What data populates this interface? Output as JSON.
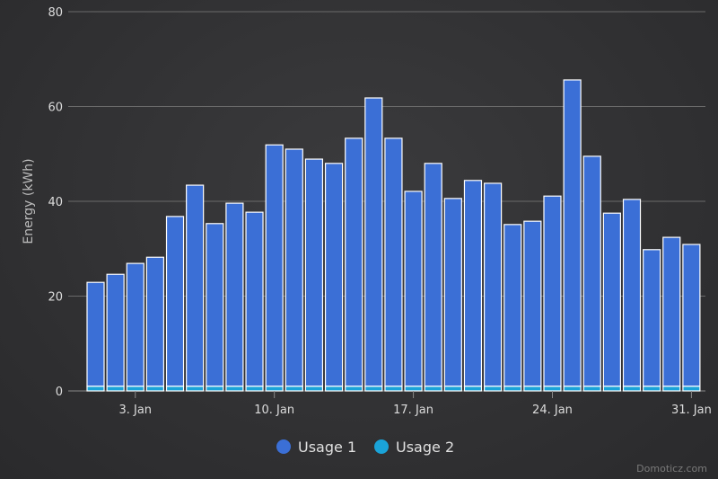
{
  "chart_data": {
    "type": "bar",
    "stacked": true,
    "ylabel": "Energy (kWh)",
    "ylim": [
      0,
      80
    ],
    "yticks": [
      0,
      20,
      40,
      60,
      80
    ],
    "grid": true,
    "x": [
      "1. Jan",
      "2. Jan",
      "3. Jan",
      "4. Jan",
      "5. Jan",
      "6. Jan",
      "7. Jan",
      "8. Jan",
      "9. Jan",
      "10. Jan",
      "11. Jan",
      "12. Jan",
      "13. Jan",
      "14. Jan",
      "15. Jan",
      "16. Jan",
      "17. Jan",
      "18. Jan",
      "19. Jan",
      "20. Jan",
      "21. Jan",
      "22. Jan",
      "23. Jan",
      "24. Jan",
      "25. Jan",
      "26. Jan",
      "27. Jan",
      "28. Jan",
      "29. Jan",
      "30. Jan",
      "31. Jan"
    ],
    "xtick_labels": {
      "2": "3. Jan",
      "9": "10. Jan",
      "16": "17. Jan",
      "23": "24. Jan",
      "30": "31. Jan"
    },
    "series": [
      {
        "name": "Usage 1",
        "color": "#3b6fd6",
        "values": [
          21.9,
          23.6,
          25.9,
          27.2,
          35.8,
          42.4,
          34.3,
          38.6,
          36.7,
          50.9,
          50.0,
          47.9,
          47.0,
          52.3,
          60.8,
          52.3,
          41.1,
          47.0,
          39.6,
          43.4,
          42.8,
          34.1,
          34.8,
          40.1,
          64.6,
          48.5,
          36.5,
          39.4,
          28.8,
          31.4,
          29.9
        ]
      },
      {
        "name": "Usage 2",
        "color": "#1aa3d8",
        "values": [
          1,
          1,
          1,
          1,
          1,
          1,
          1,
          1,
          1,
          1,
          1,
          1,
          1,
          1,
          1,
          1,
          1,
          1,
          1,
          1,
          1,
          1,
          1,
          1,
          1,
          1,
          1,
          1,
          1,
          1,
          1
        ]
      }
    ],
    "legend": "bottom-center"
  },
  "credit": "Domoticz.com"
}
